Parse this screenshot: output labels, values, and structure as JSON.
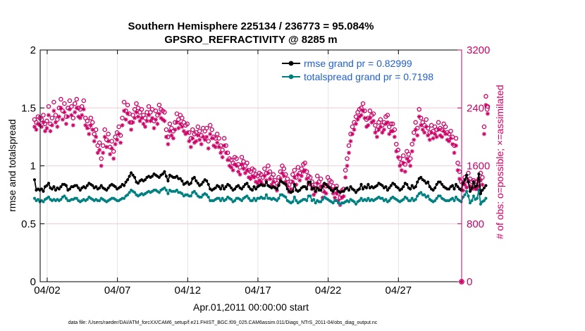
{
  "figure": {
    "title_line1": "Southern Hemisphere 225134 / 236773 = 95.084%",
    "title_line2": "GPSRO_REFRACTIVITY @ 8285 m",
    "footer": "data file: /Users/raeder/DAI/ATM_forcXX/CAM6_setup/f.e21.FHIST_BGC.f09_025.CAM6assim.011/Diags_NTrS_2011-04/obs_diag_output.nc"
  },
  "colors": {
    "rmse": "#000000",
    "spread": "#008080",
    "obs": "#cc0066",
    "legend_text": "#1f5fd1",
    "grid": "#e4e4e4"
  },
  "chart_data": {
    "type": "line",
    "title": "Southern Hemisphere 225134 / 236773 = 95.084%",
    "subtitle": "GPSRO_REFRACTIVITY @ 8285 m",
    "xlabel": "Apr.01,2011 00:00:00 start",
    "ylabel": "rmse and totalspread",
    "y2label": "# of obs: o=possible; ×=assimilated",
    "x_unit": "days since Apr.01,2011 00:00:00",
    "xlim": [
      0.5,
      30.5
    ],
    "ylim": [
      0,
      2
    ],
    "y2lim": [
      0,
      3200
    ],
    "xticks": [
      1,
      6,
      11,
      16,
      21,
      26
    ],
    "xtick_labels": [
      "04/02",
      "04/07",
      "04/12",
      "04/17",
      "04/22",
      "04/27"
    ],
    "yticks": [
      0,
      0.5,
      1,
      1.5,
      2
    ],
    "ytick_labels": [
      "0",
      "0.5",
      "1",
      "1.5",
      "2"
    ],
    "y2ticks": [
      0,
      800,
      1600,
      2400,
      3200
    ],
    "y2tick_labels": [
      "0",
      "800",
      "1600",
      "2400",
      "3200"
    ],
    "grid": true,
    "legend_position": "top-right",
    "step_days": 0.125,
    "series": [
      {
        "name": "rmse grand pr = 0.82999",
        "axis": "left",
        "marker": "filled-circle",
        "values": [
          0.88,
          0.79,
          0.8,
          0.79,
          0.8,
          0.78,
          0.82,
          0.83,
          0.85,
          0.81,
          0.8,
          0.82,
          0.79,
          0.81,
          0.8,
          0.82,
          0.84,
          0.84,
          0.83,
          0.79,
          0.8,
          0.82,
          0.82,
          0.83,
          0.83,
          0.81,
          0.79,
          0.81,
          0.82,
          0.81,
          0.83,
          0.85,
          0.84,
          0.83,
          0.81,
          0.82,
          0.8,
          0.81,
          0.83,
          0.81,
          0.8,
          0.79,
          0.81,
          0.83,
          0.84,
          0.83,
          0.82,
          0.8,
          0.81,
          0.82,
          0.84,
          0.83,
          0.86,
          0.88,
          0.91,
          0.94,
          0.92,
          0.9,
          0.86,
          0.85,
          0.87,
          0.88,
          0.87,
          0.88,
          0.9,
          0.91,
          0.9,
          0.91,
          0.93,
          0.92,
          0.91,
          0.9,
          0.92,
          0.93,
          0.95,
          0.91,
          0.87,
          0.92,
          0.91,
          0.9,
          0.9,
          0.91,
          0.89,
          0.89,
          0.87,
          0.84,
          0.85,
          0.86,
          0.84,
          0.85,
          0.89,
          0.9,
          0.87,
          0.85,
          0.83,
          0.84,
          0.86,
          0.88,
          0.87,
          0.84,
          0.8,
          0.79,
          0.8,
          0.81,
          0.83,
          0.82,
          0.8,
          0.83,
          0.8,
          0.82,
          0.84,
          0.83,
          0.81,
          0.79,
          0.8,
          0.82,
          0.83,
          0.81,
          0.8,
          0.82,
          0.84,
          0.85,
          0.82,
          0.8,
          0.79,
          0.82,
          0.8,
          0.82,
          0.83,
          0.84,
          0.83,
          0.83,
          0.86,
          0.83,
          0.82,
          0.81,
          0.82,
          0.81,
          0.8,
          0.83,
          0.87,
          0.86,
          0.85,
          0.84,
          0.8,
          0.78,
          0.77,
          0.78,
          0.84,
          0.79,
          0.78,
          0.79,
          0.81,
          0.82,
          0.82,
          0.8,
          0.86,
          0.86,
          0.8,
          0.81,
          0.78,
          0.81,
          0.79,
          0.79,
          0.82,
          0.85,
          0.84,
          0.82,
          0.81,
          0.79,
          0.78,
          0.8,
          0.81,
          0.78,
          0.77,
          0.78,
          0.78,
          0.8,
          0.81,
          0.79,
          0.82,
          0.8,
          0.79,
          0.77,
          0.79,
          0.8,
          0.84,
          0.8,
          0.82,
          0.81,
          0.84,
          0.81,
          0.82,
          0.81,
          0.82,
          0.83,
          0.85,
          0.84,
          0.83,
          0.81,
          0.82,
          0.79,
          0.81,
          0.83,
          0.85,
          0.84,
          0.82,
          0.81,
          0.79,
          0.8,
          0.82,
          0.85,
          0.84,
          0.81,
          0.8,
          0.83,
          0.81,
          0.82,
          0.86,
          0.89,
          0.9,
          0.88,
          0.87,
          0.85,
          0.86,
          0.82,
          0.8,
          0.79,
          0.81,
          0.84,
          0.86,
          0.86,
          0.84,
          0.82,
          0.81,
          0.8,
          0.8,
          0.82,
          0.83,
          0.8,
          0.84,
          0.82,
          0.8,
          0.79,
          0.85,
          0.88,
          0.92,
          0.86,
          0.78,
          0.81,
          0.86,
          0.82,
          0.83,
          0.93,
          0.76,
          0.79,
          0.81,
          0.83
        ],
        "color": "#000000"
      },
      {
        "name": "totalspread grand pr = 0.7198",
        "axis": "left",
        "marker": "filled-circle",
        "values": [
          0.72,
          0.7,
          0.71,
          0.69,
          0.7,
          0.69,
          0.71,
          0.72,
          0.73,
          0.71,
          0.7,
          0.71,
          0.7,
          0.71,
          0.7,
          0.71,
          0.73,
          0.74,
          0.72,
          0.7,
          0.7,
          0.71,
          0.71,
          0.72,
          0.72,
          0.7,
          0.69,
          0.7,
          0.71,
          0.7,
          0.71,
          0.73,
          0.72,
          0.71,
          0.7,
          0.71,
          0.7,
          0.7,
          0.72,
          0.71,
          0.7,
          0.69,
          0.7,
          0.71,
          0.72,
          0.72,
          0.71,
          0.7,
          0.7,
          0.71,
          0.72,
          0.72,
          0.74,
          0.75,
          0.77,
          0.79,
          0.78,
          0.77,
          0.75,
          0.74,
          0.75,
          0.76,
          0.75,
          0.76,
          0.77,
          0.78,
          0.77,
          0.78,
          0.79,
          0.79,
          0.78,
          0.77,
          0.79,
          0.8,
          0.81,
          0.79,
          0.76,
          0.79,
          0.78,
          0.78,
          0.78,
          0.79,
          0.77,
          0.77,
          0.76,
          0.74,
          0.75,
          0.75,
          0.74,
          0.74,
          0.77,
          0.78,
          0.76,
          0.74,
          0.73,
          0.73,
          0.75,
          0.76,
          0.75,
          0.73,
          0.7,
          0.7,
          0.7,
          0.71,
          0.72,
          0.72,
          0.7,
          0.72,
          0.7,
          0.71,
          0.73,
          0.72,
          0.71,
          0.69,
          0.7,
          0.72,
          0.72,
          0.71,
          0.7,
          0.72,
          0.73,
          0.74,
          0.72,
          0.7,
          0.7,
          0.72,
          0.7,
          0.72,
          0.72,
          0.73,
          0.72,
          0.72,
          0.75,
          0.72,
          0.72,
          0.71,
          0.72,
          0.71,
          0.7,
          0.72,
          0.75,
          0.75,
          0.74,
          0.73,
          0.7,
          0.69,
          0.68,
          0.69,
          0.73,
          0.7,
          0.68,
          0.69,
          0.7,
          0.71,
          0.71,
          0.7,
          0.74,
          0.74,
          0.7,
          0.71,
          0.68,
          0.7,
          0.69,
          0.69,
          0.71,
          0.73,
          0.72,
          0.71,
          0.7,
          0.69,
          0.68,
          0.7,
          0.7,
          0.68,
          0.67,
          0.68,
          0.68,
          0.69,
          0.7,
          0.69,
          0.71,
          0.7,
          0.69,
          0.67,
          0.69,
          0.7,
          0.72,
          0.7,
          0.71,
          0.7,
          0.72,
          0.7,
          0.71,
          0.7,
          0.71,
          0.72,
          0.73,
          0.72,
          0.72,
          0.7,
          0.71,
          0.69,
          0.7,
          0.72,
          0.73,
          0.72,
          0.71,
          0.7,
          0.69,
          0.7,
          0.71,
          0.73,
          0.72,
          0.7,
          0.7,
          0.72,
          0.7,
          0.71,
          0.74,
          0.76,
          0.77,
          0.75,
          0.75,
          0.73,
          0.74,
          0.71,
          0.7,
          0.69,
          0.7,
          0.72,
          0.74,
          0.74,
          0.72,
          0.71,
          0.7,
          0.7,
          0.7,
          0.71,
          0.72,
          0.7,
          0.73,
          0.71,
          0.7,
          0.69,
          0.73,
          0.75,
          0.78,
          0.74,
          0.68,
          0.7,
          0.74,
          0.71,
          0.72,
          0.79,
          0.67,
          0.69,
          0.7,
          0.72
        ],
        "color": "#008080"
      },
      {
        "name": "possible",
        "axis": "right",
        "marker": "open-circle",
        "values": [
          2240,
          2200,
          2280,
          2260,
          2240,
          2300,
          2180,
          2220,
          2420,
          2180,
          2260,
          2480,
          2300,
          2240,
          2400,
          2520,
          2360,
          2460,
          2280,
          2400,
          2500,
          2420,
          2260,
          2460,
          2520,
          2400,
          2380,
          2420,
          2500,
          2260,
          2220,
          2140,
          2260,
          2200,
          2040,
          2100,
          1880,
          1920,
          1700,
          1880,
          2100,
          1960,
          2040,
          1860,
          1940,
          1800,
          2000,
          2060,
          2140,
          2020,
          2260,
          2480,
          2360,
          2440,
          2320,
          2200,
          2300,
          2380,
          2460,
          2400,
          2340,
          2380,
          2300,
          2260,
          2340,
          2420,
          2340,
          2380,
          2220,
          2360,
          2300,
          2440,
          2380,
          2360,
          2340,
          2100,
          2000,
          2180,
          2120,
          2080,
          2200,
          2320,
          2240,
          2300,
          2260,
          2200,
          2160,
          2180,
          2060,
          1980,
          2100,
          2040,
          2060,
          2140,
          2080,
          2020,
          2120,
          2080,
          2120,
          1940,
          2160,
          2100,
          2000,
          1980,
          2040,
          1980,
          1880,
          1820,
          1980,
          1880,
          1780,
          1700,
          1680,
          1640,
          1720,
          1700,
          1620,
          1580,
          1720,
          1660,
          1600,
          1640,
          1540,
          1520,
          1560,
          1540,
          1480,
          1460,
          1500,
          1480,
          1440,
          1560,
          1500,
          1600,
          1520,
          1440,
          1480,
          1400,
          1360,
          1440,
          1520,
          1600,
          1560,
          1480,
          1420,
          1340,
          1380,
          1480,
          1540,
          1440,
          1580,
          1500,
          1560,
          1620,
          1640,
          1520,
          1460,
          1440,
          1380,
          1300,
          1340,
          1460,
          1380,
          1420,
          1260,
          1340,
          1320,
          1440,
          1400,
          1380,
          1320,
          1260,
          1320,
          1220,
          1160,
          1260,
          1280,
          1540,
          1700,
          1880,
          2040,
          2140,
          2200,
          2280,
          2340,
          2380,
          2400,
          2460,
          2360,
          2240,
          2260,
          2360,
          2300,
          2320,
          2160,
          2100,
          2200,
          2240,
          2160,
          2200,
          2280,
          2300,
          2140,
          2180,
          2180,
          2100,
          1900,
          1820,
          1700,
          1640,
          1740,
          1620,
          1800,
          1760,
          1700,
          1900,
          2060,
          2200,
          2120,
          2380,
          2260,
          2200,
          2160,
          2240,
          2120,
          2060,
          2160,
          2080,
          2140,
          2100,
          2200,
          2120,
          2100,
          2180,
          2140,
          2060,
          2040,
          2080,
          2000,
          1880,
          1980,
          1640,
          1520,
          1380,
          1360,
          1440,
          1400,
          1500,
          1420,
          1380,
          1400,
          1380,
          1380,
          1420,
          1500,
          1440,
          2140,
          2560,
          2420
        ],
        "color": "#cc0066"
      },
      {
        "name": "assimilated",
        "axis": "right",
        "marker": "asterisk",
        "values": [
          2140,
          2100,
          2180,
          2160,
          2140,
          2200,
          2080,
          2120,
          2300,
          2080,
          2160,
          2360,
          2200,
          2140,
          2280,
          2400,
          2240,
          2340,
          2180,
          2280,
          2380,
          2300,
          2160,
          2340,
          2400,
          2280,
          2260,
          2300,
          2380,
          2160,
          2120,
          2040,
          2160,
          2100,
          1940,
          2000,
          1780,
          1820,
          1600,
          1780,
          2000,
          1860,
          1940,
          1760,
          1840,
          1700,
          1900,
          1960,
          2040,
          1920,
          2160,
          2360,
          2240,
          2320,
          2200,
          2100,
          2200,
          2260,
          2340,
          2280,
          2220,
          2260,
          2180,
          2140,
          2220,
          2300,
          2220,
          2260,
          2120,
          2240,
          2180,
          2320,
          2260,
          2240,
          2220,
          2000,
          1900,
          2080,
          2020,
          1980,
          2100,
          2200,
          2120,
          2180,
          2140,
          2080,
          2040,
          2060,
          1940,
          1860,
          1980,
          1920,
          1940,
          2020,
          1960,
          1900,
          2000,
          1960,
          2000,
          1840,
          2040,
          1980,
          1880,
          1860,
          1920,
          1860,
          1780,
          1720,
          1880,
          1780,
          1680,
          1600,
          1580,
          1540,
          1620,
          1600,
          1520,
          1480,
          1620,
          1560,
          1500,
          1540,
          1440,
          1420,
          1460,
          1440,
          1380,
          1360,
          1400,
          1380,
          1340,
          1460,
          1400,
          1500,
          1420,
          1340,
          1380,
          1300,
          1260,
          1340,
          1420,
          1500,
          1460,
          1380,
          1320,
          1240,
          1280,
          1380,
          1440,
          1340,
          1480,
          1400,
          1460,
          1520,
          1540,
          1420,
          1360,
          1340,
          1280,
          1200,
          1240,
          1360,
          1280,
          1320,
          1160,
          1240,
          1220,
          1340,
          1300,
          1280,
          1220,
          1160,
          1220,
          1120,
          1060,
          1160,
          1180,
          1440,
          1600,
          1780,
          1940,
          2040,
          2100,
          2180,
          2240,
          2280,
          2300,
          2360,
          2260,
          2140,
          2160,
          2260,
          2200,
          2220,
          2060,
          2000,
          2100,
          2140,
          2060,
          2100,
          2180,
          2200,
          2040,
          2080,
          2080,
          2000,
          1800,
          1720,
          1600,
          1540,
          1640,
          1520,
          1700,
          1660,
          1600,
          1800,
          1960,
          2100,
          2020,
          2280,
          2160,
          2100,
          2060,
          2140,
          2020,
          1960,
          2060,
          1980,
          2040,
          2000,
          2100,
          2020,
          2000,
          2080,
          2040,
          1960,
          1940,
          1980,
          1900,
          1780,
          1880,
          1540,
          1420,
          1280,
          1260,
          1340,
          1300,
          1400,
          1320,
          1280,
          1300,
          1280,
          1280,
          1320,
          1400,
          1340,
          2040,
          2440,
          2320
        ],
        "color": "#cc0066"
      }
    ],
    "extra_marks": [
      {
        "series": "possible",
        "x": 30.5,
        "y": 0
      },
      {
        "series": "assimilated",
        "x": 30.5,
        "y": 0
      }
    ]
  }
}
